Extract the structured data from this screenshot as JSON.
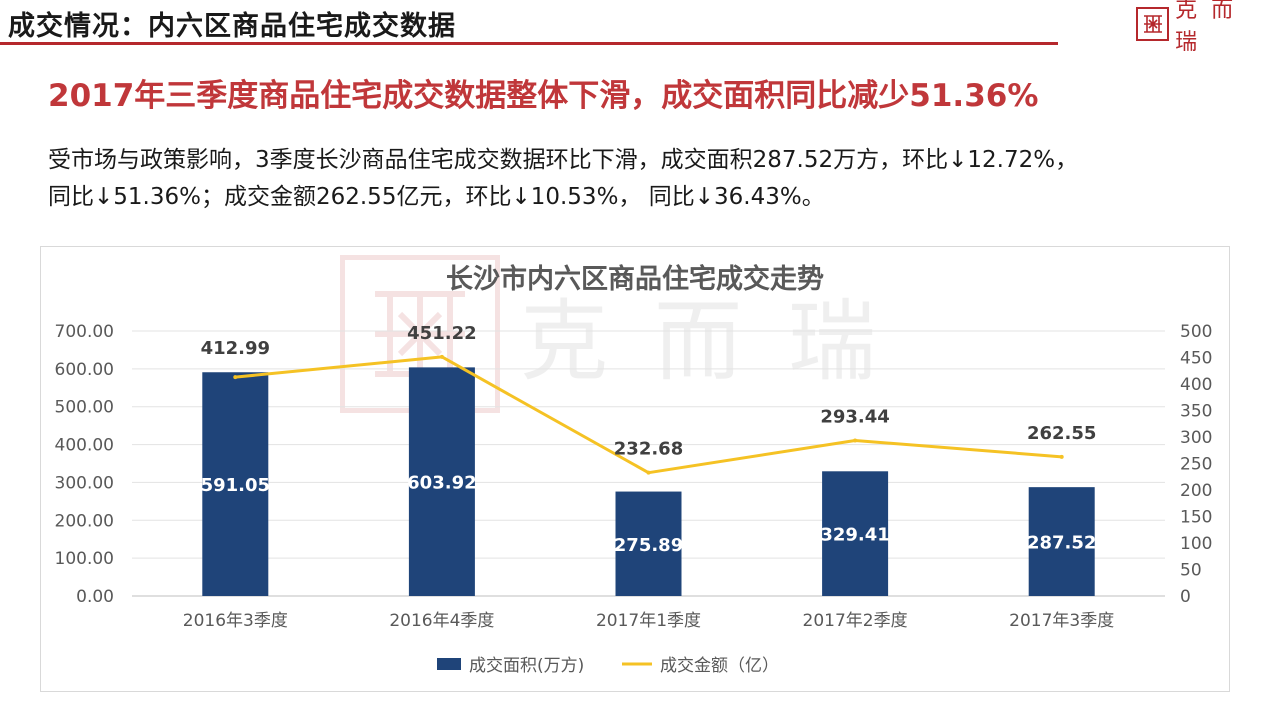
{
  "header": {
    "title": "成交情况：内六区商品住宅成交数据",
    "logo_text": "克而瑞"
  },
  "headline": "2017年三季度商品住宅成交数据整体下滑，成交面积同比减少51.36%",
  "body_lines": [
    "受市场与政策影响，3季度长沙商品住宅成交数据环比下滑，成交面积287.52万方，环比↓12.72%，",
    "同比↓51.36%；成交金额262.55亿元，环比↓10.53%， 同比↓36.43%。"
  ],
  "watermark_text": "克而瑞",
  "chart_data": {
    "type": "bar",
    "title": "长沙市内六区商品住宅成交走势",
    "categories": [
      "2016年3季度",
      "2016年4季度",
      "2017年1季度",
      "2017年2季度",
      "2017年3季度"
    ],
    "series": [
      {
        "name": "成交面积(万方)",
        "type": "bar",
        "axis": "left",
        "color": "#1f4479",
        "values": [
          591.05,
          603.92,
          275.89,
          329.41,
          287.52
        ],
        "labels": [
          "591.05",
          "603.92",
          "275.89",
          "329.41",
          "287.52"
        ]
      },
      {
        "name": "成交金额（亿）",
        "type": "line",
        "axis": "right",
        "color": "#f5c224",
        "values": [
          412.99,
          451.22,
          232.68,
          293.44,
          262.55
        ],
        "labels": [
          "412.99",
          "451.22",
          "232.68",
          "293.44",
          "262.55"
        ]
      }
    ],
    "y_left": {
      "range": [
        0,
        700
      ],
      "ticks": [
        "0.00",
        "100.00",
        "200.00",
        "300.00",
        "400.00",
        "500.00",
        "600.00",
        "700.00"
      ]
    },
    "y_right": {
      "range": [
        0,
        500
      ],
      "ticks": [
        "0",
        "50",
        "100",
        "150",
        "200",
        "250",
        "300",
        "350",
        "400",
        "450",
        "500"
      ]
    },
    "grid": true,
    "legend_position": "bottom"
  }
}
